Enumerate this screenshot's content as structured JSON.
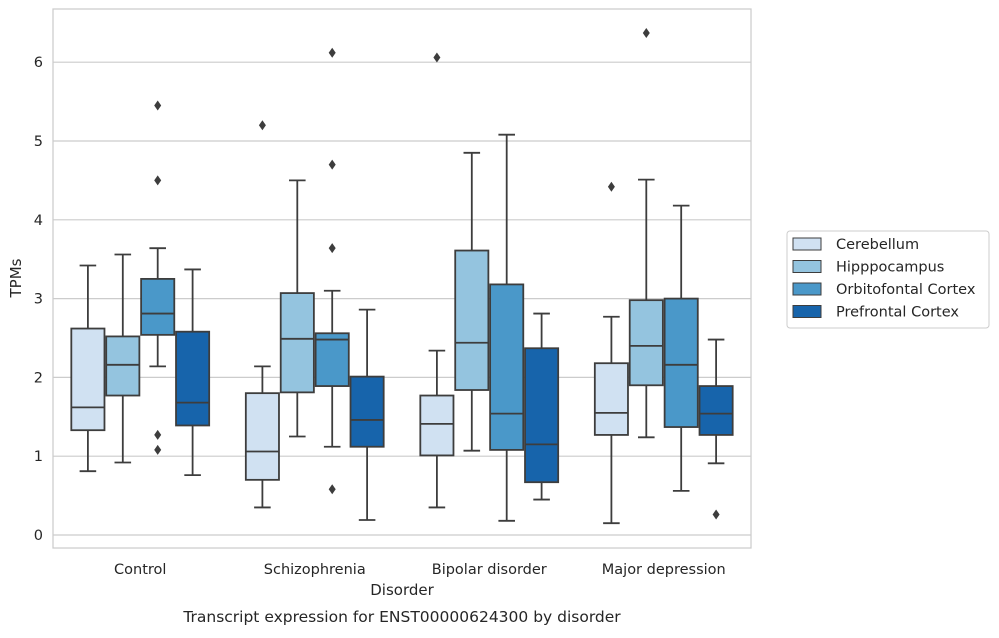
{
  "chart_data": {
    "type": "boxplot",
    "title": "",
    "caption": "Transcript expression for ENST00000624300 by disorder",
    "xlabel": "Disorder",
    "ylabel": "TPMs",
    "ylim": [
      -0.15,
      6.7
    ],
    "yticks": [
      0,
      1,
      2,
      3,
      4,
      5,
      6
    ],
    "grid": "horizontal",
    "legend_position": "right",
    "categories": [
      "Control",
      "Schizophrenia",
      "Bipolar disorder",
      "Major depression"
    ],
    "series": [
      {
        "name": "Cerebellum",
        "color": "#d0e1f2",
        "boxes": [
          {
            "whisker_low": 0.81,
            "q1": 1.33,
            "median": 1.62,
            "q3": 2.62,
            "whisker_high": 3.42,
            "outliers": []
          },
          {
            "whisker_low": 0.35,
            "q1": 0.7,
            "median": 1.06,
            "q3": 1.8,
            "whisker_high": 2.14,
            "outliers": [
              5.2
            ]
          },
          {
            "whisker_low": 0.35,
            "q1": 1.01,
            "median": 1.41,
            "q3": 1.77,
            "whisker_high": 2.34,
            "outliers": [
              6.06
            ]
          },
          {
            "whisker_low": 0.15,
            "q1": 1.27,
            "median": 1.55,
            "q3": 2.18,
            "whisker_high": 2.77,
            "outliers": [
              4.42
            ]
          }
        ]
      },
      {
        "name": "Hipppocampus",
        "color": "#94c4df",
        "boxes": [
          {
            "whisker_low": 0.92,
            "q1": 1.77,
            "median": 2.16,
            "q3": 2.52,
            "whisker_high": 3.56,
            "outliers": []
          },
          {
            "whisker_low": 1.25,
            "q1": 1.81,
            "median": 2.49,
            "q3": 3.07,
            "whisker_high": 4.5,
            "outliers": []
          },
          {
            "whisker_low": 1.07,
            "q1": 1.84,
            "median": 2.44,
            "q3": 3.61,
            "whisker_high": 4.85,
            "outliers": []
          },
          {
            "whisker_low": 1.24,
            "q1": 1.9,
            "median": 2.4,
            "q3": 2.98,
            "whisker_high": 4.51,
            "outliers": [
              6.37
            ]
          }
        ]
      },
      {
        "name": "Orbitofontal Cortex",
        "color": "#4a98c9",
        "boxes": [
          {
            "whisker_low": 2.14,
            "q1": 2.54,
            "median": 2.81,
            "q3": 3.25,
            "whisker_high": 3.64,
            "outliers": [
              5.45,
              4.5,
              1.27,
              1.08
            ]
          },
          {
            "whisker_low": 1.12,
            "q1": 1.89,
            "median": 2.48,
            "q3": 2.56,
            "whisker_high": 3.1,
            "outliers": [
              6.12,
              4.7,
              3.64,
              0.58
            ]
          },
          {
            "whisker_low": 0.18,
            "q1": 1.08,
            "median": 1.54,
            "q3": 3.18,
            "whisker_high": 5.08,
            "outliers": []
          },
          {
            "whisker_low": 0.56,
            "q1": 1.37,
            "median": 2.16,
            "q3": 3.0,
            "whisker_high": 4.18,
            "outliers": []
          }
        ]
      },
      {
        "name": "Prefrontal Cortex",
        "color": "#1764ab",
        "boxes": [
          {
            "whisker_low": 0.76,
            "q1": 1.39,
            "median": 1.68,
            "q3": 2.58,
            "whisker_high": 3.37,
            "outliers": []
          },
          {
            "whisker_low": 0.19,
            "q1": 1.12,
            "median": 1.46,
            "q3": 2.01,
            "whisker_high": 2.86,
            "outliers": []
          },
          {
            "whisker_low": 0.45,
            "q1": 0.67,
            "median": 1.15,
            "q3": 2.37,
            "whisker_high": 2.81,
            "outliers": []
          },
          {
            "whisker_low": 0.91,
            "q1": 1.27,
            "median": 1.54,
            "q3": 1.89,
            "whisker_high": 2.48,
            "outliers": [
              0.26
            ]
          }
        ]
      }
    ]
  }
}
